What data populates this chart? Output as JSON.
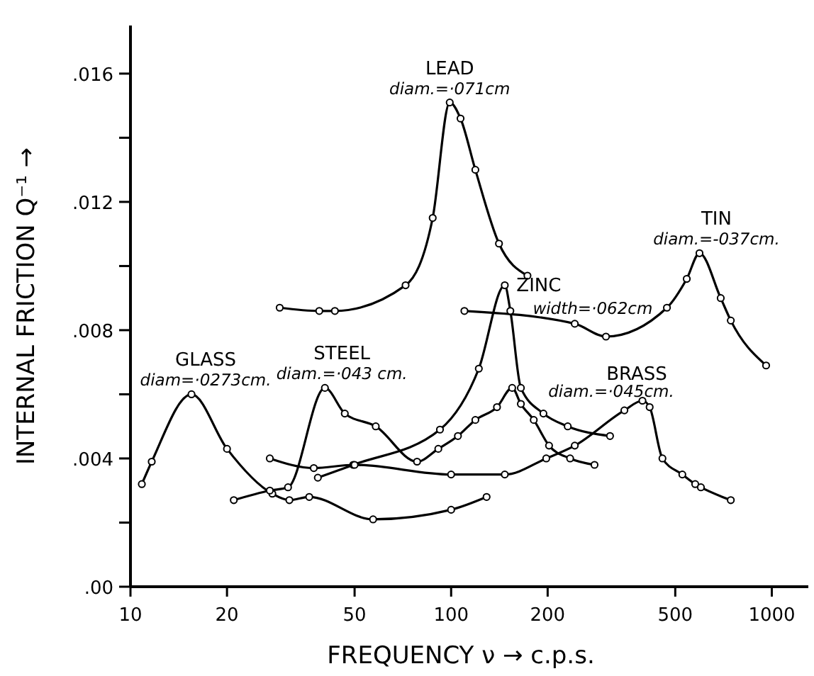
{
  "chart_data": {
    "type": "line",
    "xlabel": "FREQUENCY     ν → c.p.s.",
    "ylabel": "INTERNAL FRICTION     Q⁻¹ →",
    "log": "x",
    "marker": "circle",
    "line_style": "solid",
    "grid": false,
    "xlim": [
      10,
      1300
    ],
    "xticks": [
      10,
      20,
      50,
      100,
      200,
      500,
      1000
    ],
    "ylim": [
      0,
      0.0175
    ],
    "yticks": [
      {
        "value": 0,
        "label": ".00"
      },
      {
        "value": 0.002,
        "label": null
      },
      {
        "value": 0.004,
        "label": ".004"
      },
      {
        "value": 0.006,
        "label": null
      },
      {
        "value": 0.008,
        "label": ".008"
      },
      {
        "value": 0.01,
        "label": null
      },
      {
        "value": 0.012,
        "label": ".012"
      },
      {
        "value": 0.014,
        "label": null
      },
      {
        "value": 0.016,
        "label": ".016"
      }
    ],
    "series": [
      {
        "name": "LEAD",
        "color": "#000000",
        "x": [
          29.2,
          38.8,
          43.4,
          72.1,
          87.6,
          99,
          107,
          119,
          141,
          173
        ],
        "values": [
          0.0087,
          0.0086,
          0.0086,
          0.0094,
          0.0115,
          0.0151,
          0.0146,
          0.013,
          0.0107,
          0.0097
        ]
      },
      {
        "name": "TIN",
        "color": "#000000",
        "x": [
          110,
          243,
          304,
          471,
          543,
          595,
          693,
          745,
          960
        ],
        "values": [
          0.0086,
          0.0082,
          0.0078,
          0.0087,
          0.0096,
          0.0104,
          0.009,
          0.0083,
          0.0069
        ]
      },
      {
        "name": "ZINC",
        "color": "#000000",
        "x": [
          38.4,
          49.5,
          92.3,
          122,
          147,
          153,
          165,
          194,
          231,
          313
        ],
        "values": [
          0.0034,
          0.0038,
          0.0049,
          0.0068,
          0.0094,
          0.0086,
          0.0062,
          0.0054,
          0.005,
          0.0047
        ]
      },
      {
        "name": "GLASS",
        "color": "#000000",
        "x": [
          10.85,
          11.65,
          15.5,
          20,
          27.7,
          31.3,
          36.1,
          57.1,
          100,
          129
        ],
        "values": [
          0.0032,
          0.0039,
          0.006,
          0.0043,
          0.0029,
          0.0027,
          0.0028,
          0.0021,
          0.0024,
          0.0028
        ]
      },
      {
        "name": "STEEL",
        "color": "#000000",
        "x": [
          21,
          27.2,
          31,
          40.4,
          46.6,
          58.2,
          78.3,
          91.2,
          105,
          119,
          139,
          155,
          165,
          181,
          202,
          235,
          280
        ],
        "values": [
          0.0027,
          0.003,
          0.0031,
          0.0062,
          0.0054,
          0.005,
          0.0039,
          0.0043,
          0.0047,
          0.0052,
          0.0056,
          0.0062,
          0.0057,
          0.0052,
          0.0044,
          0.004,
          0.0038
        ]
      },
      {
        "name": "BRASS",
        "color": "#000000",
        "x": [
          27.2,
          37.3,
          50,
          100,
          147,
          198,
          243,
          347,
          395,
          416,
          456,
          526,
          577,
          601,
          745
        ],
        "values": [
          0.004,
          0.0037,
          0.0038,
          0.0035,
          0.0035,
          0.004,
          0.0044,
          0.0055,
          0.0058,
          0.0056,
          0.004,
          0.0035,
          0.0032,
          0.0031,
          0.0027
        ]
      }
    ],
    "annotations": [
      {
        "text": "diam.=·071cm",
        "x": 99,
        "y": 0.0151
      },
      {
        "text": "diam.=-037cm.",
        "x": 595,
        "y": 0.0104
      },
      {
        "text": "width=·062cm",
        "x": 147,
        "y": 0.0094
      },
      {
        "text": "diam=·0273cm.",
        "x": 15.5,
        "y": 0.006
      },
      {
        "text": "diam.=·043 cm.",
        "x": 40.4,
        "y": 0.0062
      },
      {
        "text": "diam.=·045cm.",
        "x": 395,
        "y": 0.0058
      }
    ]
  }
}
